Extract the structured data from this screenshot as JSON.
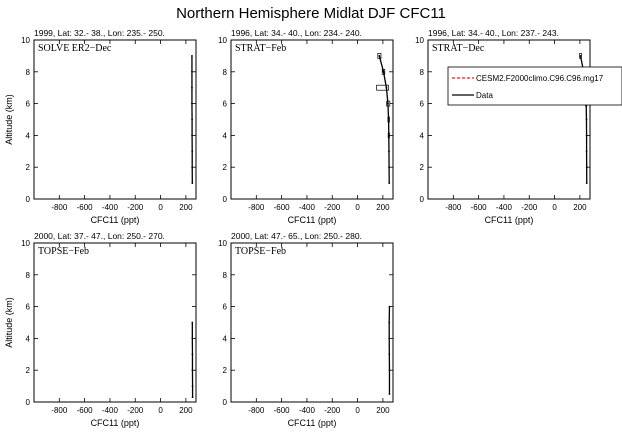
{
  "title": "Northern Hemisphere Midlat DJF CFC11",
  "chart_data": [
    {
      "type": "line",
      "header": "1999, Lat: 32.- 38., Lon: 235.- 250.",
      "panel_label": "SOLVE ER2−Dec",
      "xlabel": "CFC11 (ppt)",
      "ylabel": "Altitude (km)",
      "xlim": [
        -1000,
        280
      ],
      "ylim": [
        0,
        10
      ],
      "xticks": [
        "-800",
        "-600",
        "-400",
        "-200",
        "0",
        "200"
      ],
      "yticks": [
        "0",
        "2",
        "4",
        "6",
        "8",
        "10"
      ],
      "series": [
        {
          "name": "Data",
          "color": "#000000",
          "x": [
            248,
            248,
            248,
            248,
            249,
            249,
            250,
            250,
            251
          ],
          "y": [
            9,
            8,
            7,
            6,
            5,
            4,
            3,
            2,
            1
          ]
        }
      ]
    },
    {
      "type": "line",
      "header": "1996, Lat: 34.- 40., Lon: 234.- 240.",
      "panel_label": "STRAT−Feb",
      "xlabel": "CFC11 (ppt)",
      "ylabel": "",
      "xlim": [
        -1000,
        280
      ],
      "ylim": [
        0,
        10
      ],
      "xticks": [
        "-800",
        "-600",
        "-400",
        "-200",
        "0",
        "200"
      ],
      "yticks": [
        "0",
        "2",
        "4",
        "6",
        "8",
        "10"
      ],
      "series": [
        {
          "name": "Data",
          "color": "#000000",
          "x": [
            172,
            205,
            228,
            240,
            245,
            247,
            248,
            249,
            250
          ],
          "y": [
            9,
            8,
            7,
            6,
            5,
            4,
            3,
            2,
            1
          ]
        }
      ],
      "error_boxes": [
        {
          "y": 9,
          "low": 160,
          "high": 185
        },
        {
          "y": 8,
          "low": 195,
          "high": 215
        },
        {
          "y": 7,
          "low": 150,
          "high": 245
        },
        {
          "y": 6,
          "low": 230,
          "high": 255
        },
        {
          "y": 5,
          "low": 240,
          "high": 252
        },
        {
          "y": 4,
          "low": 242,
          "high": 252
        }
      ]
    },
    {
      "type": "line",
      "header": "1996, Lat: 34.- 40., Lon: 237.- 243.",
      "panel_label": "STRAT−Dec",
      "xlabel": "CFC11 (ppt)",
      "ylabel": "",
      "xlim": [
        -1000,
        280
      ],
      "ylim": [
        0,
        10
      ],
      "xticks": [
        "-800",
        "-600",
        "-400",
        "-200",
        "0",
        "200"
      ],
      "yticks": [
        "0",
        "2",
        "4",
        "6",
        "8",
        "10"
      ],
      "series": [
        {
          "name": "Data",
          "color": "#000000",
          "x": [
            205,
            230,
            245,
            250,
            252,
            253,
            253,
            254,
            254
          ],
          "y": [
            9,
            8,
            7,
            6,
            5,
            4,
            3,
            2,
            1
          ]
        }
      ],
      "error_boxes": [
        {
          "y": 9,
          "low": 198,
          "high": 212
        },
        {
          "y": 6,
          "low": 245,
          "high": 255
        }
      ],
      "legend": {
        "position": "top-right",
        "entries": [
          {
            "label": "CESM2.F2000climo.C96.C96.mg17",
            "color": "#e41a1c",
            "dash": true
          },
          {
            "label": "Data",
            "color": "#000000",
            "dash": false
          }
        ]
      }
    },
    {
      "type": "line",
      "header": "2000, Lat: 37.- 47., Lon: 250.- 270.",
      "panel_label": "TOPSE−Feb",
      "xlabel": "CFC11 (ppt)",
      "ylabel": "Altitude (km)",
      "xlim": [
        -1000,
        280
      ],
      "ylim": [
        0,
        10
      ],
      "xticks": [
        "-800",
        "-600",
        "-400",
        "-200",
        "0",
        "200"
      ],
      "yticks": [
        "0",
        "2",
        "4",
        "6",
        "8",
        "10"
      ],
      "series": [
        {
          "name": "Data",
          "color": "#000000",
          "x": [
            251,
            251,
            252,
            252,
            253,
            253
          ],
          "y": [
            5,
            4,
            3,
            2,
            1,
            0.3
          ]
        }
      ]
    },
    {
      "type": "line",
      "header": "2000, Lat: 47.- 65., Lon: 250.- 280.",
      "panel_label": "TOPSE−Feb",
      "xlabel": "CFC11 (ppt)",
      "ylabel": "",
      "xlim": [
        -1000,
        280
      ],
      "ylim": [
        0,
        10
      ],
      "xticks": [
        "-800",
        "-600",
        "-400",
        "-200",
        "0",
        "200"
      ],
      "yticks": [
        "0",
        "2",
        "4",
        "6",
        "8",
        "10"
      ],
      "series": [
        {
          "name": "Data",
          "color": "#000000",
          "x": [
            252,
            250,
            250,
            251,
            252,
            252
          ],
          "y": [
            6,
            5,
            4,
            3,
            2,
            0.5
          ]
        }
      ]
    }
  ]
}
